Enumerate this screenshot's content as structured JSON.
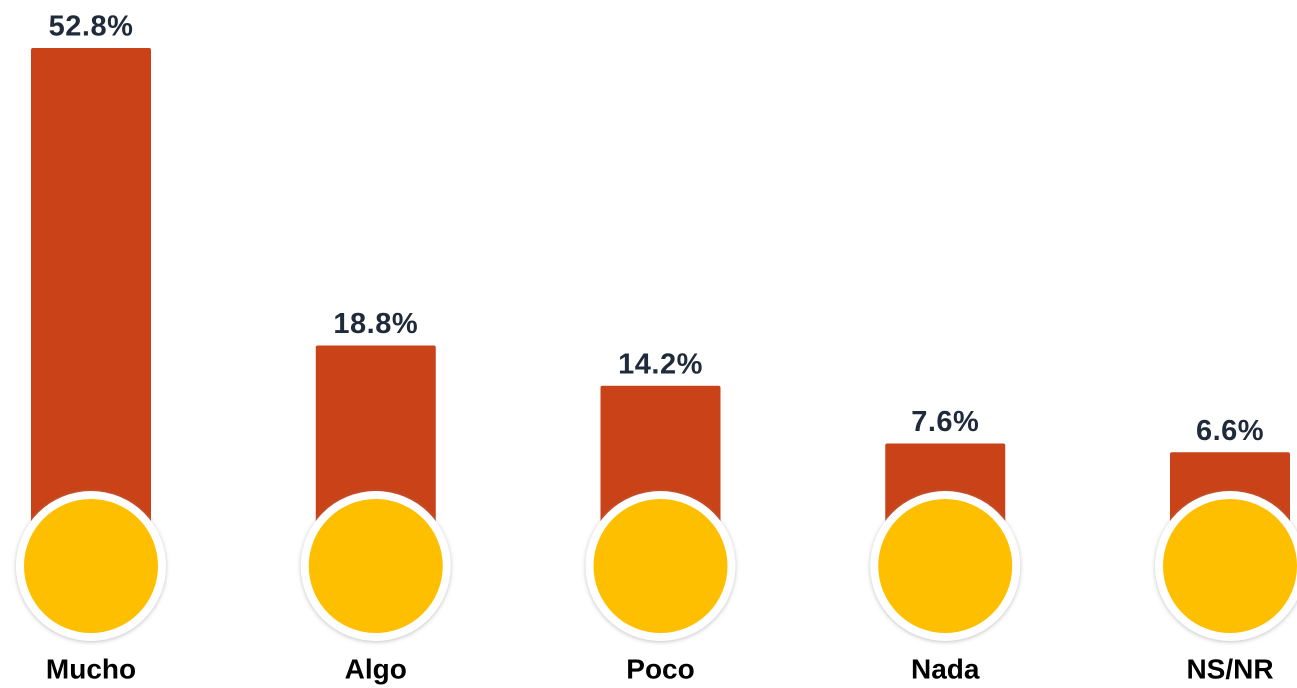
{
  "chart_data": {
    "type": "bar",
    "categories": [
      "Mucho",
      "Algo",
      "Poco",
      "Nada",
      "NS/NR"
    ],
    "values": [
      52.8,
      18.8,
      14.2,
      7.6,
      6.6
    ],
    "value_labels": [
      "52.8%",
      "18.8%",
      "14.2%",
      "7.6%",
      "6.6%"
    ],
    "color": "#c94218"
  }
}
